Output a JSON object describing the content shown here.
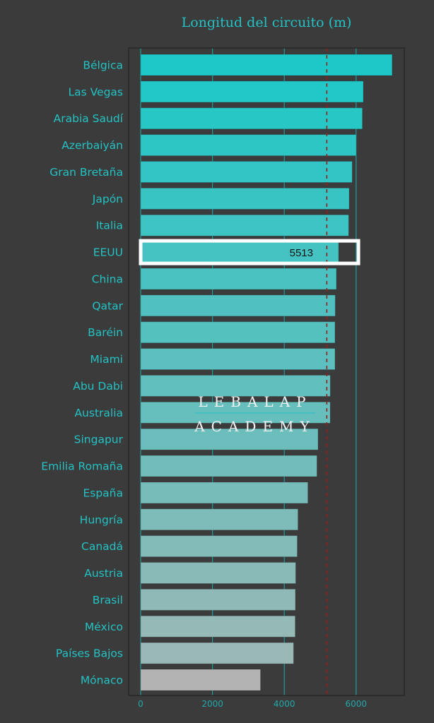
{
  "chart_data": {
    "type": "bar",
    "orientation": "horizontal",
    "title": "Longitud del circuito (m)",
    "xlabel": "",
    "ylabel": "",
    "xlim": [
      0,
      7300
    ],
    "xticks": [
      0,
      2000,
      4000,
      6000
    ],
    "xtick_labels": [
      "0",
      "2000",
      "4000",
      "6000"
    ],
    "grid": true,
    "categories": [
      "Bélgica",
      "Las Vegas",
      "Arabia Saudí",
      "Azerbaiyán",
      "Gran Bretaña",
      "Japón",
      "Italia",
      "EEUU",
      "China",
      "Qatar",
      "Baréin",
      "Miami",
      "Abu Dabi",
      "Australia",
      "Singapur",
      "Emilia Romaña",
      "España",
      "Hungría",
      "Canadá",
      "Austria",
      "Brasil",
      "México",
      "Países Bajos",
      "Mónaco"
    ],
    "values": [
      7004,
      6201,
      6174,
      6003,
      5891,
      5807,
      5793,
      5513,
      5451,
      5419,
      5412,
      5412,
      5281,
      5278,
      4940,
      4909,
      4657,
      4381,
      4361,
      4318,
      4309,
      4304,
      4259,
      3337
    ],
    "mean_line": 5184,
    "highlight": {
      "category": "EEUU",
      "label": "5513"
    },
    "colors": {
      "top": "#1cc8c8",
      "bottom": "#9ab8b5",
      "last": "#b3b3b3",
      "mean_line": "#9b1c1c",
      "background": "#3b3b3b"
    }
  },
  "watermark": {
    "line1": "LEBALAP",
    "line2": "ACADEMY"
  }
}
